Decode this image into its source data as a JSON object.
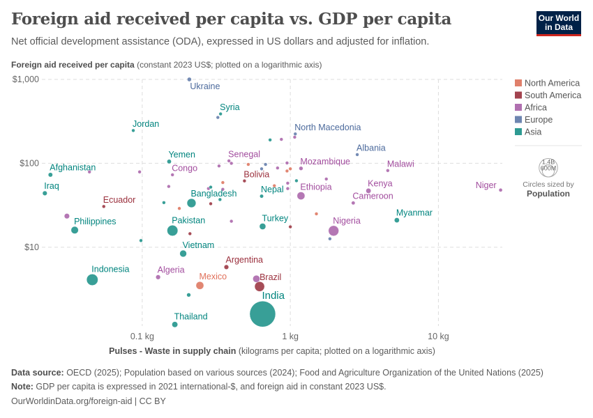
{
  "header": {
    "title": "Foreign aid received per capita vs. GDP per capita",
    "subtitle": "Net official development assistance (ODA), expressed in US dollars and adjusted for inflation.",
    "logo_text": "Our World in Data"
  },
  "chart_data": {
    "type": "scatter",
    "x_scale": "log",
    "y_scale": "log",
    "xlabel_bold": "Pulses - Waste in supply chain",
    "xlabel_rest": " (kilograms per capita; plotted on a logarithmic axis)",
    "ylabel_bold": "Foreign aid received per capita",
    "ylabel_rest": " (constant 2023 US$; plotted on a logarithmic axis)",
    "xlim": [
      0.021,
      27
    ],
    "ylim": [
      1.15,
      1000
    ],
    "x_ticks": [
      {
        "value": 0.1,
        "label": "0.1 kg"
      },
      {
        "value": 1,
        "label": "1 kg"
      },
      {
        "value": 10,
        "label": "10 kg"
      }
    ],
    "y_ticks": [
      {
        "value": 10,
        "label": "$10"
      },
      {
        "value": 100,
        "label": "$100"
      },
      {
        "value": 1000,
        "label": "$1,000"
      }
    ],
    "grid": true,
    "legend_placement": "right",
    "legend": [
      {
        "name": "North America",
        "color": "#e0806b"
      },
      {
        "name": "South America",
        "color": "#a2434f"
      },
      {
        "name": "Africa",
        "color": "#b070b0"
      },
      {
        "name": "Europe",
        "color": "#6d85b0"
      },
      {
        "name": "Asia",
        "color": "#2e9a92"
      }
    ],
    "label_colors": {
      "North America": "#e0705a",
      "South America": "#9a2f3c",
      "Africa": "#a24d9e",
      "Europe": "#4c6a9c",
      "Asia": "#00847e"
    },
    "size_legend": {
      "title": "Circles sized by",
      "variable": "Population",
      "values": [
        {
          "value": 1400,
          "label": "1.4B"
        },
        {
          "value": 600,
          "label": "600M"
        }
      ]
    },
    "points": [
      {
        "label": "Ukraine",
        "region": "Europe",
        "x": 0.208,
        "y": 1000,
        "pop": 38
      },
      {
        "label": "Syria",
        "region": "Asia",
        "x": 0.338,
        "y": 388,
        "pop": 24
      },
      {
        "label": "Jordan",
        "region": "Asia",
        "x": 0.087,
        "y": 246,
        "pop": 11
      },
      {
        "label": "Yemen",
        "region": "Asia",
        "x": 0.152,
        "y": 105,
        "pop": 40
      },
      {
        "label": "Afghanistan",
        "region": "Asia",
        "x": 0.024,
        "y": 73,
        "pop": 42
      },
      {
        "label": "Iraq",
        "region": "Asia",
        "x": 0.022,
        "y": 44,
        "pop": 46
      },
      {
        "label": "Ecuador",
        "region": "South America",
        "x": 0.055,
        "y": 30.6,
        "pop": 18
      },
      {
        "label": "Philippines",
        "region": "Asia",
        "x": 0.035,
        "y": 16,
        "pop": 116
      },
      {
        "label": "Congo",
        "region": "Africa",
        "x": 0.16,
        "y": 73,
        "pop": 6
      },
      {
        "label": "Bangladesh",
        "region": "Asia",
        "x": 0.215,
        "y": 33.6,
        "pop": 174
      },
      {
        "label": "Pakistan",
        "region": "Asia",
        "x": 0.16,
        "y": 15.8,
        "pop": 251
      },
      {
        "label": "Senegal",
        "region": "Africa",
        "x": 0.385,
        "y": 107,
        "pop": 18
      },
      {
        "label": "Bolivia",
        "region": "South America",
        "x": 0.49,
        "y": 61.7,
        "pop": 12
      },
      {
        "label": "Nepal",
        "region": "Asia",
        "x": 0.64,
        "y": 40.6,
        "pop": 30
      },
      {
        "label": "Turkey",
        "region": "Asia",
        "x": 0.65,
        "y": 17.7,
        "pop": 87
      },
      {
        "label": "North Macedonia",
        "region": "Europe",
        "x": 1.08,
        "y": 224,
        "pop": 1.8
      },
      {
        "label": "Albania",
        "region": "Europe",
        "x": 2.83,
        "y": 127,
        "pop": 2.8
      },
      {
        "label": "Mozambique",
        "region": "Africa",
        "x": 1.18,
        "y": 87,
        "pop": 35
      },
      {
        "label": "Malawi",
        "region": "Africa",
        "x": 4.55,
        "y": 82,
        "pop": 21
      },
      {
        "label": "Ethiopia",
        "region": "Africa",
        "x": 1.18,
        "y": 41,
        "pop": 132
      },
      {
        "label": "Kenya",
        "region": "Africa",
        "x": 3.37,
        "y": 47,
        "pop": 56
      },
      {
        "label": "Cameroon",
        "region": "Africa",
        "x": 2.66,
        "y": 33.7,
        "pop": 29
      },
      {
        "label": "Niger",
        "region": "Africa",
        "x": 26.3,
        "y": 48,
        "pop": 27
      },
      {
        "label": "Myanmar",
        "region": "Asia",
        "x": 5.24,
        "y": 21,
        "pop": 54
      },
      {
        "label": "Nigeria",
        "region": "Africa",
        "x": 1.96,
        "y": 15.7,
        "pop": 233
      },
      {
        "label": "Vietnam",
        "region": "Asia",
        "x": 0.189,
        "y": 8.4,
        "pop": 101
      },
      {
        "label": "Indonesia",
        "region": "Asia",
        "x": 0.046,
        "y": 4.1,
        "pop": 283
      },
      {
        "label": "Algeria",
        "region": "Africa",
        "x": 0.128,
        "y": 4.4,
        "pop": 47
      },
      {
        "label": "Mexico",
        "region": "North America",
        "x": 0.245,
        "y": 3.5,
        "pop": 131
      },
      {
        "label": "Argentina",
        "region": "South America",
        "x": 0.37,
        "y": 5.8,
        "pop": 46
      },
      {
        "label": "Brazil",
        "region": "South America",
        "x": 0.62,
        "y": 3.4,
        "pop": 212
      },
      {
        "label": "India",
        "region": "Asia",
        "x": 0.65,
        "y": 1.6,
        "pop": 1450
      },
      {
        "label": "Thailand",
        "region": "Asia",
        "x": 0.166,
        "y": 1.2,
        "pop": 72
      },
      {
        "label": "",
        "region": "Europe",
        "x": 0.324,
        "y": 352,
        "pop": 9
      },
      {
        "label": "",
        "region": "Africa",
        "x": 0.031,
        "y": 23.5,
        "pop": 60
      },
      {
        "label": "",
        "region": "Africa",
        "x": 0.096,
        "y": 79,
        "pop": 20
      },
      {
        "label": "",
        "region": "Africa",
        "x": 0.044,
        "y": 79,
        "pop": 2
      },
      {
        "label": "",
        "region": "Asia",
        "x": 0.14,
        "y": 34,
        "pop": 17
      },
      {
        "label": "",
        "region": "Africa",
        "x": 0.59,
        "y": 4.2,
        "pop": 110
      },
      {
        "label": "",
        "region": "Asia",
        "x": 0.206,
        "y": 2.7,
        "pop": 35
      },
      {
        "label": "",
        "region": "Asia",
        "x": 0.098,
        "y": 12,
        "pop": 5
      },
      {
        "label": "",
        "region": "Asia",
        "x": 0.73,
        "y": 190,
        "pop": 3
      },
      {
        "label": "",
        "region": "Africa",
        "x": 0.87,
        "y": 193,
        "pop": 5
      },
      {
        "label": "",
        "region": "Africa",
        "x": 1.07,
        "y": 205,
        "pop": 3
      },
      {
        "label": "",
        "region": "Africa",
        "x": 1.75,
        "y": 65,
        "pop": 14
      },
      {
        "label": "",
        "region": "North America",
        "x": 1.0,
        "y": 86,
        "pop": 4
      },
      {
        "label": "",
        "region": "North America",
        "x": 0.95,
        "y": 81,
        "pop": 3
      },
      {
        "label": "",
        "region": "Africa",
        "x": 0.95,
        "y": 101,
        "pop": 5
      },
      {
        "label": "",
        "region": "Africa",
        "x": 0.82,
        "y": 88,
        "pop": 7
      },
      {
        "label": "",
        "region": "Europe",
        "x": 0.68,
        "y": 97,
        "pop": 4
      },
      {
        "label": "",
        "region": "Europe",
        "x": 0.64,
        "y": 86,
        "pop": 3
      },
      {
        "label": "",
        "region": "North America",
        "x": 0.52,
        "y": 97,
        "pop": 3
      },
      {
        "label": "",
        "region": "Africa",
        "x": 0.4,
        "y": 100,
        "pop": 4
      },
      {
        "label": "",
        "region": "Africa",
        "x": 0.33,
        "y": 93,
        "pop": 8
      },
      {
        "label": "",
        "region": "North America",
        "x": 0.35,
        "y": 59,
        "pop": 3
      },
      {
        "label": "",
        "region": "Africa",
        "x": 0.28,
        "y": 50,
        "pop": 10
      },
      {
        "label": "",
        "region": "Asia",
        "x": 0.29,
        "y": 52,
        "pop": 5
      },
      {
        "label": "",
        "region": "Africa",
        "x": 0.35,
        "y": 49,
        "pop": 4
      },
      {
        "label": "",
        "region": "Africa",
        "x": 0.151,
        "y": 53,
        "pop": 14
      },
      {
        "label": "",
        "region": "South America",
        "x": 0.29,
        "y": 33,
        "pop": 6
      },
      {
        "label": "",
        "region": "Asia",
        "x": 0.335,
        "y": 37,
        "pop": 6
      },
      {
        "label": "",
        "region": "North America",
        "x": 0.178,
        "y": 29,
        "pop": 4
      },
      {
        "label": "",
        "region": "South America",
        "x": 0.21,
        "y": 14.5,
        "pop": 8
      },
      {
        "label": "",
        "region": "Africa",
        "x": 0.4,
        "y": 20.4,
        "pop": 18
      },
      {
        "label": "",
        "region": "South America",
        "x": 1.0,
        "y": 17.5,
        "pop": 7
      },
      {
        "label": "",
        "region": "Africa",
        "x": 0.96,
        "y": 58,
        "pop": 6
      },
      {
        "label": "",
        "region": "Africa",
        "x": 0.96,
        "y": 50,
        "pop": 20
      },
      {
        "label": "",
        "region": "North America",
        "x": 0.78,
        "y": 54,
        "pop": 5
      },
      {
        "label": "",
        "region": "Asia",
        "x": 1.1,
        "y": 62,
        "pop": 3
      },
      {
        "label": "",
        "region": "North America",
        "x": 1.5,
        "y": 25,
        "pop": 3
      },
      {
        "label": "",
        "region": "Europe",
        "x": 1.85,
        "y": 12.6,
        "pop": 2
      }
    ]
  },
  "footer": {
    "source_label": "Data source:",
    "source_text": " OECD (2025); Population based on various sources (2024); Food and Agriculture Organization of the United Nations (2025)",
    "note_label": "Note:",
    "note_text": " GDP per capita is expressed in 2021 international-$, and foreign aid in constant 2023 US$.",
    "url_text": "OurWorldinData.org/foreign-aid | CC BY"
  }
}
